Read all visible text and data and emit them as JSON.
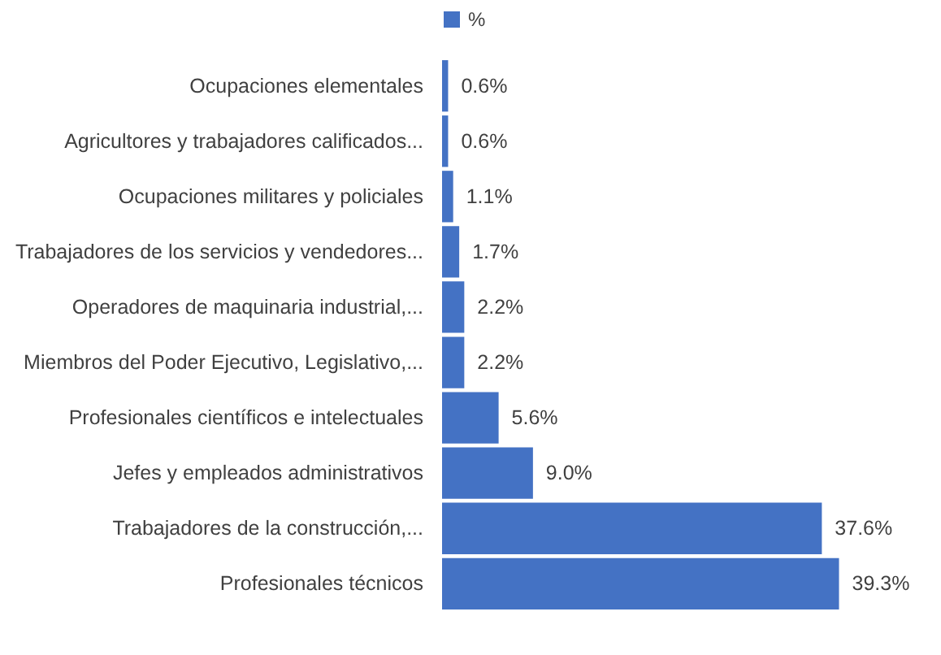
{
  "chart_data": {
    "type": "bar",
    "orientation": "horizontal",
    "legend": "top",
    "categories": [
      "Ocupaciones elementales",
      "Agricultores y trabajadores calificados...",
      "Ocupaciones militares y policiales",
      "Trabajadores de los servicios y vendedores...",
      "Operadores de maquinaria industrial,...",
      "Miembros del Poder Ejecutivo, Legislativo,...",
      "Profesionales científicos e intelectuales",
      "Jefes y empleados administrativos",
      "Trabajadores de la construcción,...",
      "Profesionales técnicos"
    ],
    "series": [
      {
        "name": "%",
        "color": "#4472c4",
        "values": [
          0.6,
          0.6,
          1.1,
          1.7,
          2.2,
          2.2,
          5.6,
          9.0,
          37.6,
          39.3
        ],
        "value_labels": [
          "0.6%",
          "0.6%",
          "1.1%",
          "1.7%",
          "2.2%",
          "2.2%",
          "5.6%",
          "9.0%",
          "37.6%",
          "39.3%"
        ]
      }
    ]
  }
}
